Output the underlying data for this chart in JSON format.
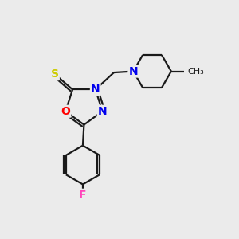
{
  "background_color": "#ebebeb",
  "bond_color": "#1a1a1a",
  "atom_colors": {
    "O": "#ff0000",
    "N": "#0000ee",
    "S": "#cccc00",
    "F": "#ff44bb",
    "C": "#1a1a1a"
  },
  "figsize": [
    3.0,
    3.0
  ],
  "dpi": 100,
  "lw": 1.6,
  "fontsize": 10
}
